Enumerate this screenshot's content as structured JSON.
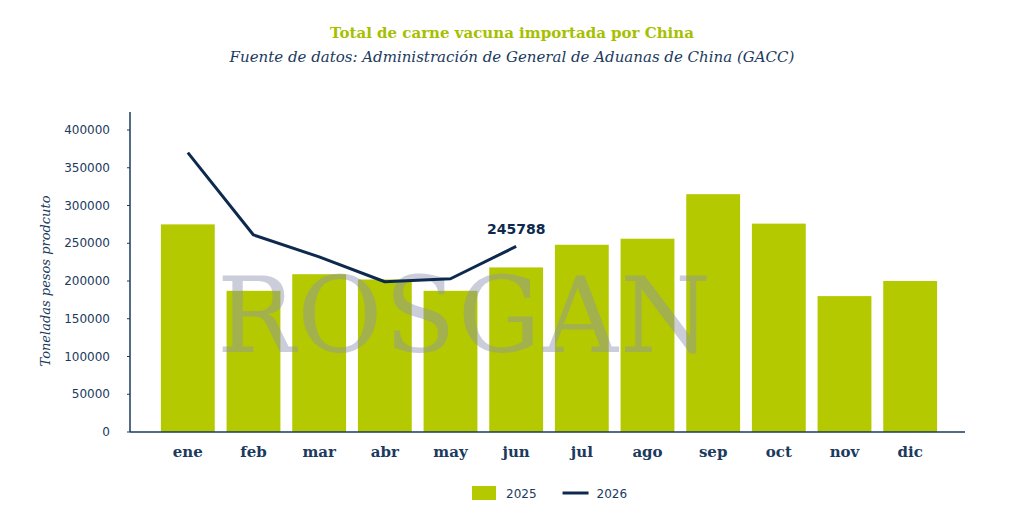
{
  "chart_data": {
    "type": "bar",
    "title": "Total de carne vacuna importada por China",
    "subtitle": "Fuente de datos: Administración de General de Aduanas de China (GACC)",
    "y_label": "Toneladas pesos prodcuto",
    "watermark": "ROSGAN",
    "categories": [
      "ene",
      "feb",
      "mar",
      "abr",
      "may",
      "jun",
      "jul",
      "ago",
      "sep",
      "oct",
      "nov",
      "dic"
    ],
    "series": [
      {
        "name": "2025",
        "type": "bar",
        "color": "#b5c900",
        "values": [
          275000,
          187000,
          209000,
          202000,
          187000,
          218000,
          248000,
          256000,
          315000,
          276000,
          180000,
          200000
        ]
      },
      {
        "name": "2026",
        "type": "line",
        "color": "#0d2a4e",
        "values": [
          370000,
          261000,
          232000,
          199000,
          203000,
          245788,
          null,
          null,
          null,
          null,
          null,
          null
        ]
      }
    ],
    "annotations": [
      {
        "text": "245788",
        "category": "jun",
        "value": 245788
      }
    ],
    "ylim": [
      0,
      400000
    ],
    "yticks": [
      0,
      50000,
      100000,
      150000,
      200000,
      250000,
      300000,
      350000,
      400000
    ],
    "grid": false,
    "legend": "bottom"
  }
}
